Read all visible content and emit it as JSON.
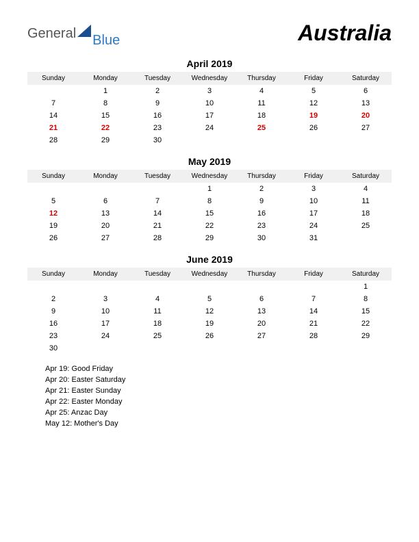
{
  "logo": {
    "general": "General",
    "blue": "Blue"
  },
  "country": "Australia",
  "holiday_color": "#d40000",
  "text_color": "#000000",
  "day_headers": [
    "Sunday",
    "Monday",
    "Tuesday",
    "Wednesday",
    "Thursday",
    "Friday",
    "Saturday"
  ],
  "months": [
    {
      "title": "April 2019",
      "weeks": [
        [
          null,
          1,
          2,
          3,
          4,
          5,
          6
        ],
        [
          7,
          8,
          9,
          10,
          11,
          12,
          13
        ],
        [
          14,
          15,
          16,
          17,
          18,
          {
            "d": 19,
            "h": true
          },
          {
            "d": 20,
            "h": true
          }
        ],
        [
          {
            "d": 21,
            "h": true
          },
          {
            "d": 22,
            "h": true
          },
          23,
          24,
          {
            "d": 25,
            "h": true
          },
          26,
          27
        ],
        [
          28,
          29,
          30,
          null,
          null,
          null,
          null
        ]
      ]
    },
    {
      "title": "May 2019",
      "weeks": [
        [
          null,
          null,
          null,
          1,
          2,
          3,
          4
        ],
        [
          5,
          6,
          7,
          8,
          9,
          10,
          11
        ],
        [
          {
            "d": 12,
            "h": true
          },
          13,
          14,
          15,
          16,
          17,
          18
        ],
        [
          19,
          20,
          21,
          22,
          23,
          24,
          25
        ],
        [
          26,
          27,
          28,
          29,
          30,
          31,
          null
        ]
      ]
    },
    {
      "title": "June 2019",
      "weeks": [
        [
          null,
          null,
          null,
          null,
          null,
          null,
          1
        ],
        [
          2,
          3,
          4,
          5,
          6,
          7,
          8
        ],
        [
          9,
          10,
          11,
          12,
          13,
          14,
          15
        ],
        [
          16,
          17,
          18,
          19,
          20,
          21,
          22
        ],
        [
          23,
          24,
          25,
          26,
          27,
          28,
          29
        ],
        [
          30,
          null,
          null,
          null,
          null,
          null,
          null
        ]
      ]
    }
  ],
  "holidays": [
    "Apr 19: Good Friday",
    "Apr 20: Easter Saturday",
    "Apr 21: Easter Sunday",
    "Apr 22: Easter Monday",
    "Apr 25: Anzac Day",
    "May 12: Mother's Day"
  ]
}
